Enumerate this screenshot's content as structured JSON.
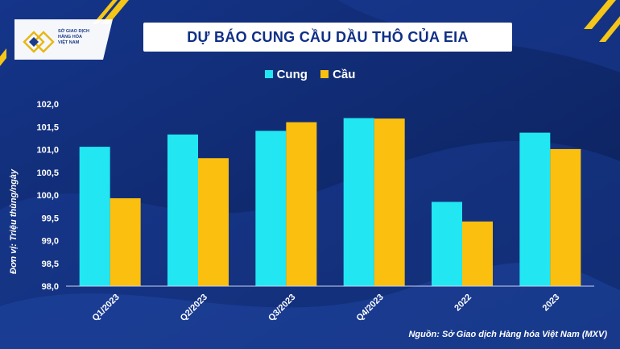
{
  "header": {
    "title": "DỰ BÁO CUNG CẦU DẦU THÔ CỦA EIA",
    "logo_lines": [
      "SỞ GIAO DỊCH",
      "HÀNG HÓA",
      "VIỆT NAM"
    ]
  },
  "source": "Nguồn: Sở Giao dịch Hàng hóa Việt Nam (MXV)",
  "colors": {
    "background": "#0f2a6b",
    "supply": "#22e6f2",
    "demand": "#fbbf0f",
    "accent_stripe": "#f5c518"
  },
  "chart_data": {
    "type": "bar",
    "title": "DỰ BÁO CUNG CẦU DẦU THÔ CỦA EIA",
    "ylabel": "Đơn vị: Triệu thùng/ngày",
    "xlabel": "",
    "categories": [
      "Q1/2023",
      "Q2/2023",
      "Q3/2023",
      "Q4/2023",
      "2022",
      "2023"
    ],
    "series": [
      {
        "name": "Cung",
        "color": "#22e6f2",
        "values": [
          101.06,
          101.33,
          101.41,
          101.69,
          99.85,
          101.37
        ]
      },
      {
        "name": "Cầu",
        "color": "#fbbf0f",
        "values": [
          99.93,
          100.81,
          101.6,
          101.68,
          99.42,
          101.01
        ]
      }
    ],
    "ylim": [
      98.0,
      102.0
    ],
    "yticks": [
      "98,0",
      "98,5",
      "99,0",
      "99,5",
      "100,0",
      "100,5",
      "101,0",
      "101,5",
      "102,0"
    ],
    "grid": false,
    "legend": "top-center"
  }
}
